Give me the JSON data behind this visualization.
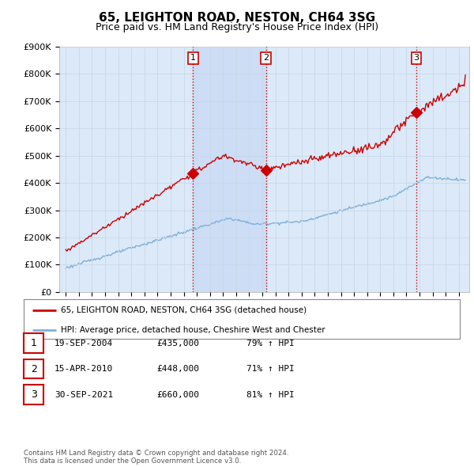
{
  "title": "65, LEIGHTON ROAD, NESTON, CH64 3SG",
  "subtitle": "Price paid vs. HM Land Registry's House Price Index (HPI)",
  "ylim": [
    0,
    900000
  ],
  "yticks": [
    0,
    100000,
    200000,
    300000,
    400000,
    500000,
    600000,
    700000,
    800000,
    900000
  ],
  "ytick_labels": [
    "£0",
    "£100K",
    "£200K",
    "£300K",
    "£400K",
    "£500K",
    "£600K",
    "£700K",
    "£800K",
    "£900K"
  ],
  "sale_dates": [
    2004.72,
    2010.29,
    2021.75
  ],
  "sale_prices": [
    435000,
    448000,
    660000
  ],
  "sale_labels": [
    "1",
    "2",
    "3"
  ],
  "vline_color": "#cc0000",
  "shade_color": "#ccddf5",
  "plot_bg_color": "#dce9f8",
  "fig_bg_color": "#ffffff",
  "grid_color": "#c8d8e8",
  "red_line_color": "#cc0000",
  "blue_line_color": "#7fb0d8",
  "legend_entries": [
    "65, LEIGHTON ROAD, NESTON, CH64 3SG (detached house)",
    "HPI: Average price, detached house, Cheshire West and Chester"
  ],
  "table_rows": [
    [
      "1",
      "19-SEP-2004",
      "£435,000",
      "79% ↑ HPI"
    ],
    [
      "2",
      "15-APR-2010",
      "£448,000",
      "71% ↑ HPI"
    ],
    [
      "3",
      "30-SEP-2021",
      "£660,000",
      "81% ↑ HPI"
    ]
  ],
  "footer": "Contains HM Land Registry data © Crown copyright and database right 2024.\nThis data is licensed under the Open Government Licence v3.0.",
  "title_fontsize": 11,
  "subtitle_fontsize": 9
}
